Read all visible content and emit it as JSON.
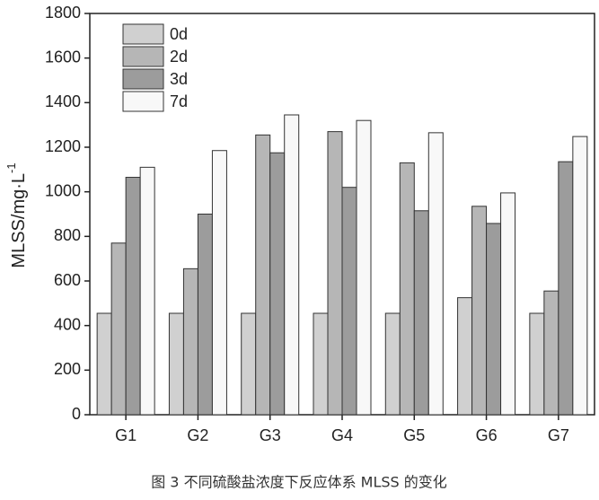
{
  "chart_data": {
    "type": "bar",
    "y_label": "MLSS/mg·L",
    "y_label_superscript": "-1",
    "caption": "图 3 不同硫酸盐浓度下反应体系 MLSS 的变化",
    "categories": [
      "G1",
      "G2",
      "G3",
      "G4",
      "G5",
      "G6",
      "G7"
    ],
    "series": [
      {
        "name": "0d",
        "color": "#d0d0d0",
        "values": [
          455,
          455,
          455,
          455,
          455,
          525,
          455
        ]
      },
      {
        "name": "2d",
        "color": "#b6b6b6",
        "values": [
          770,
          655,
          1255,
          1270,
          1130,
          935,
          555
        ]
      },
      {
        "name": "3d",
        "color": "#9c9c9c",
        "values": [
          1065,
          900,
          1175,
          1020,
          915,
          858,
          1135
        ]
      },
      {
        "name": "7d",
        "color": "#f8f8f8",
        "values": [
          1110,
          1185,
          1345,
          1320,
          1265,
          995,
          1248
        ]
      }
    ],
    "ylim": [
      0,
      1800
    ],
    "yticks": [
      0,
      200,
      400,
      600,
      800,
      1000,
      1200,
      1400,
      1600,
      1800
    ],
    "legend": "upper left"
  }
}
